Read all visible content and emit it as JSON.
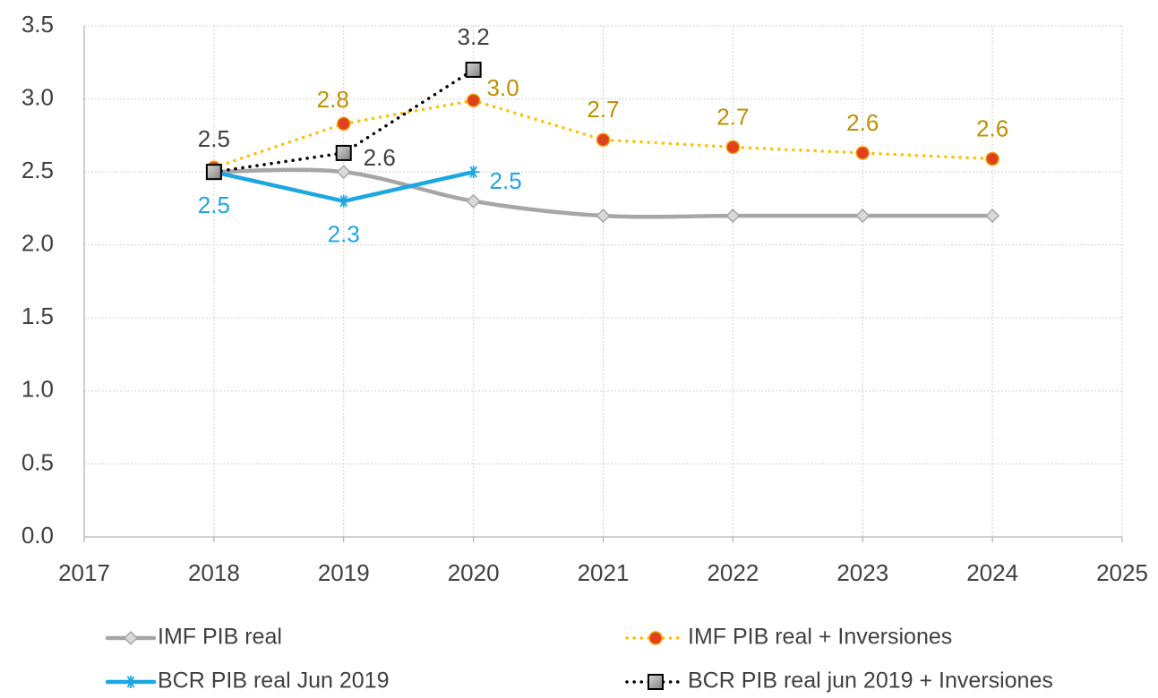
{
  "chart_data": {
    "type": "line",
    "x": [
      2018,
      2019,
      2020,
      2021,
      2022,
      2023,
      2024
    ],
    "xlim": [
      2017,
      2025
    ],
    "xticks": [
      2017,
      2018,
      2019,
      2020,
      2021,
      2022,
      2023,
      2024,
      2025
    ],
    "ylim": [
      0,
      3.5
    ],
    "yticks": [
      {
        "value": 0,
        "label": "0.0"
      },
      0.5,
      {
        "value": 1,
        "label": "1.0"
      },
      1.5,
      {
        "value": 2,
        "label": "2.0"
      },
      2.5,
      {
        "value": 3,
        "label": "3.0"
      },
      3.5
    ],
    "grid": true,
    "series": [
      {
        "name": "IMF PIB real",
        "color": "#a6a6a6",
        "marker": "diamond",
        "smooth": true,
        "values": [
          2.5,
          2.5,
          2.3,
          2.2,
          2.2,
          2.2,
          2.2
        ]
      },
      {
        "name": "IMF PIB real  + Inversiones",
        "color": "#ffc000",
        "marker": "circle",
        "dash": "dotted",
        "label_color": "#bf9000",
        "values": [
          2.53,
          2.83,
          2.99,
          2.72,
          2.67,
          2.63,
          2.59
        ],
        "value_labels": [
          null,
          "2.8",
          "3.0",
          "2.7",
          "2.7",
          "2.6",
          "2.6"
        ]
      },
      {
        "name": "BCR PIB real Jun 2019",
        "color": "#1ca6e2",
        "marker": "star",
        "data_labels": true,
        "label_color": "#1ca6e2",
        "values": [
          2.5,
          2.3,
          2.5,
          null,
          null,
          null,
          null
        ]
      },
      {
        "name": "BCR PIB real jun 2019 + Inversiones",
        "color": "#000000",
        "marker": "square",
        "dash": "dotted",
        "label_color": "#404040",
        "values": [
          2.5,
          2.63,
          3.2,
          null,
          null,
          null,
          null
        ],
        "value_labels": [
          "2.5",
          "2.6",
          "3.2",
          null,
          null,
          null,
          null
        ]
      }
    ]
  }
}
